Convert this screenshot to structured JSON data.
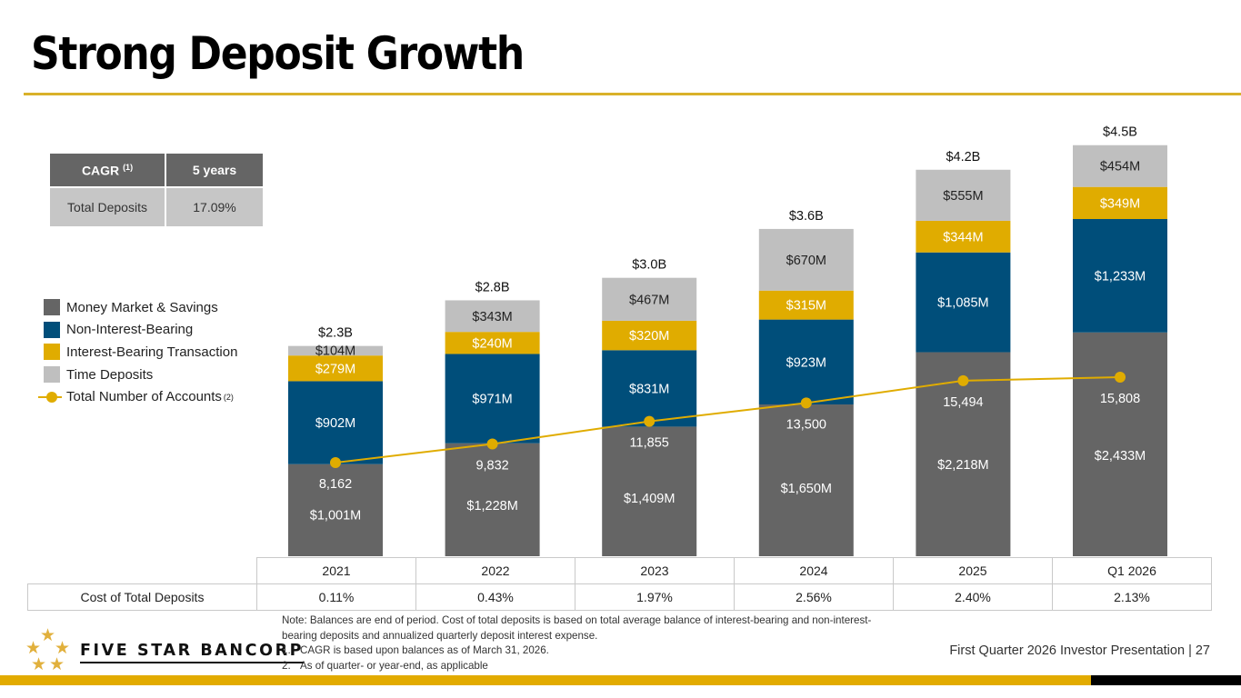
{
  "page": {
    "title": "Strong Deposit Growth",
    "footer": "First Quarter 2026 Investor Presentation |  27",
    "company": "FIVE STAR BANCORP"
  },
  "cagr_table": {
    "header": [
      "CAGR",
      "5 years"
    ],
    "header_sup": "(1)",
    "row": [
      "Total Deposits",
      "17.09%"
    ]
  },
  "legend": [
    {
      "label": "Money Market & Savings",
      "color": "#656565"
    },
    {
      "label": "Non-Interest-Bearing",
      "color": "#004e7a"
    },
    {
      "label": "Interest-Bearing Transaction",
      "color": "#e0ac00"
    },
    {
      "label": "Time Deposits",
      "color": "#bfbfbf"
    },
    {
      "label": "Total Number of Accounts",
      "sup": "(2)",
      "color": "#e0ac00"
    }
  ],
  "chart_data": {
    "type": "bar",
    "stacked": true,
    "categories": [
      "2021",
      "2022",
      "2023",
      "2024",
      "2025",
      "Q1 2026"
    ],
    "series": [
      {
        "name": "Money Market & Savings",
        "color": "#656565",
        "label_color": "#ffffff",
        "values": [
          1001,
          1228,
          1409,
          1650,
          2218,
          2433
        ],
        "labels": [
          "$1,001M",
          "$1,228M",
          "$1,409M",
          "$1,650M",
          "$2,218M",
          "$2,433M"
        ]
      },
      {
        "name": "Non-Interest-Bearing",
        "color": "#004e7a",
        "label_color": "#ffffff",
        "values": [
          902,
          971,
          831,
          923,
          1085,
          1233
        ],
        "labels": [
          "$902M",
          "$971M",
          "$831M",
          "$923M",
          "$1,085M",
          "$1,233M"
        ]
      },
      {
        "name": "Interest-Bearing Transaction",
        "color": "#e0ac00",
        "label_color": "#ffffff",
        "values": [
          279,
          240,
          320,
          315,
          344,
          349
        ],
        "labels": [
          "$279M",
          "$240M",
          "$320M",
          "$315M",
          "$344M",
          "$349M"
        ]
      },
      {
        "name": "Time Deposits",
        "color": "#bfbfbf",
        "label_color": "#222222",
        "values": [
          104,
          343,
          467,
          670,
          555,
          454
        ],
        "labels": [
          "$104M",
          "$343M",
          "$467M",
          "$670M",
          "$555M",
          "$454M"
        ]
      }
    ],
    "totals": [
      "$2.3B",
      "$2.8B",
      "$3.0B",
      "$3.6B",
      "$4.2B",
      "$4.5B"
    ],
    "line_series": {
      "name": "Total Number of Accounts",
      "color": "#e0ac00",
      "values": [
        8162,
        9832,
        11855,
        13500,
        15494,
        15808
      ],
      "labels": [
        "8,162",
        "9,832",
        "11,855",
        "13,500",
        "15,494",
        "15,808"
      ]
    },
    "unit": "$M",
    "title": "",
    "xlabel": "",
    "ylabel": "",
    "grid": false,
    "legend_position": "left"
  },
  "cost_table": {
    "label": "Cost of Total Deposits",
    "years": [
      "2021",
      "2022",
      "2023",
      "2024",
      "2025",
      "Q1 2026"
    ],
    "values": [
      "0.11%",
      "0.43%",
      "1.97%",
      "2.56%",
      "2.40%",
      "2.13%"
    ]
  },
  "notes": {
    "main": "Note: Balances are end of period. Cost of total deposits is based on total average balance of interest-bearing and non-interest-bearing deposits and annualized quarterly deposit interest expense.",
    "items": [
      {
        "num": "1.",
        "text": "CAGR is based upon balances as of March 31, 2026."
      },
      {
        "num": "2.",
        "text": "As of quarter- or year-end, as applicable"
      }
    ]
  }
}
